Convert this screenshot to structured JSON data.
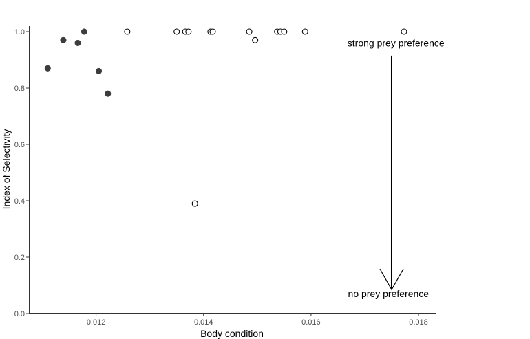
{
  "chart_data": {
    "type": "scatter",
    "xlabel": "Body condition",
    "ylabel": "Index of Selectivity",
    "xlim": [
      0.01075,
      0.01832
    ],
    "ylim": [
      0.0,
      1.0
    ],
    "xticks": [
      0.012,
      0.014,
      0.016,
      0.018
    ],
    "xtick_labels": [
      "0.012",
      "0.014",
      "0.016",
      "0.018"
    ],
    "yticks": [
      0.0,
      0.2,
      0.4,
      0.6,
      0.8,
      1.0
    ],
    "ytick_labels": [
      "0.0",
      "0.2",
      "0.4",
      "0.6",
      "0.8",
      "1.0"
    ],
    "grid": false,
    "series": [
      {
        "marker": "filled-circle",
        "color": "#3d3d3d",
        "points": [
          {
            "x": 0.0111,
            "y": 0.87
          },
          {
            "x": 0.01139,
            "y": 0.97
          },
          {
            "x": 0.01166,
            "y": 0.96
          },
          {
            "x": 0.01178,
            "y": 1.0
          },
          {
            "x": 0.01205,
            "y": 0.86
          },
          {
            "x": 0.01222,
            "y": 0.78
          }
        ]
      },
      {
        "marker": "open-circle",
        "color": "#000000",
        "points": [
          {
            "x": 0.01258,
            "y": 1.0
          },
          {
            "x": 0.0135,
            "y": 1.0
          },
          {
            "x": 0.01366,
            "y": 1.0
          },
          {
            "x": 0.01372,
            "y": 1.0
          },
          {
            "x": 0.01384,
            "y": 0.39
          },
          {
            "x": 0.01413,
            "y": 1.0
          },
          {
            "x": 0.01417,
            "y": 1.0
          },
          {
            "x": 0.01485,
            "y": 1.0
          },
          {
            "x": 0.01496,
            "y": 0.97
          },
          {
            "x": 0.01537,
            "y": 1.0
          },
          {
            "x": 0.01543,
            "y": 1.0
          },
          {
            "x": 0.0155,
            "y": 1.0
          },
          {
            "x": 0.01589,
            "y": 1.0
          },
          {
            "x": 0.01773,
            "y": 1.0
          }
        ]
      }
    ],
    "annotations": [
      {
        "text": "strong prey preference",
        "x": 0.01758,
        "y": 0.947
      },
      {
        "text": "no prey preference",
        "x": 0.01744,
        "y": 0.058
      }
    ],
    "arrow": {
      "x": 0.0175,
      "y_from": 0.915,
      "y_to": 0.085,
      "direction": "down"
    }
  }
}
